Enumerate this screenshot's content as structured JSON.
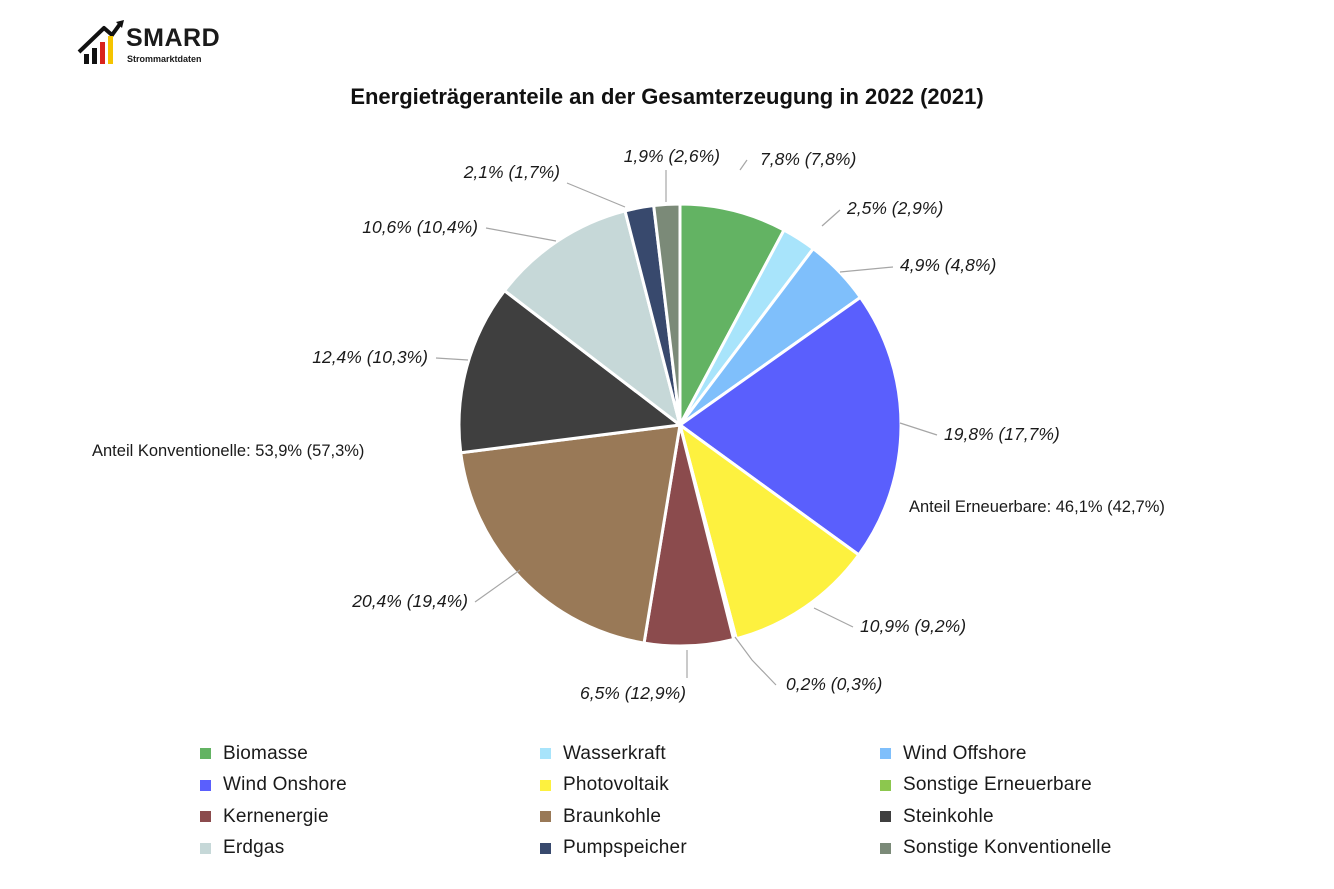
{
  "logo": {
    "name": "SMARD",
    "subtitle": "Strommarktdaten"
  },
  "chart_data": {
    "type": "pie",
    "title": "Energieträgeranteile an der Gesamterzeugung in 2022 (2021)",
    "slices": [
      {
        "name": "Biomasse",
        "value": 7.8,
        "label": "7,8% (7,8%)",
        "color": "#63b363"
      },
      {
        "name": "Wasserkraft",
        "value": 2.5,
        "label": "2,5% (2,9%)",
        "color": "#a8e4fb"
      },
      {
        "name": "Wind Offshore",
        "value": 4.9,
        "label": "4,9% (4,8%)",
        "color": "#7fbffb"
      },
      {
        "name": "Wind Onshore",
        "value": 19.8,
        "label": "19,8% (17,7%)",
        "color": "#5a5ffd"
      },
      {
        "name": "Photovoltaik",
        "value": 10.9,
        "label": "10,9% (9,2%)",
        "color": "#fdf13f"
      },
      {
        "name": "Sonstige Erneuerbare",
        "value": 0.2,
        "label": "0,2% (0,3%)",
        "color": "#8cc74e"
      },
      {
        "name": "Kernenergie",
        "value": 6.5,
        "label": "6,5% (12,9%)",
        "color": "#8b4b4d"
      },
      {
        "name": "Braunkohle",
        "value": 20.4,
        "label": "20,4% (19,4%)",
        "color": "#997957"
      },
      {
        "name": "Steinkohle",
        "value": 12.4,
        "label": "12,4% (10,3%)",
        "color": "#3f3f3f"
      },
      {
        "name": "Erdgas",
        "value": 10.6,
        "label": "10,6% (10,4%)",
        "color": "#c6d8d8"
      },
      {
        "name": "Pumpspeicher",
        "value": 2.1,
        "label": "2,1% (1,7%)",
        "color": "#38496d"
      },
      {
        "name": "Sonstige Konventionelle",
        "value": 1.9,
        "label": "1,9% (2,6%)",
        "color": "#7b8a78"
      }
    ],
    "group_labels": {
      "renewable": "Anteil Erneuerbare: 46,1% (42,7%)",
      "conventional": "Anteil Konventionelle: 53,9% (57,3%)"
    },
    "legend": {
      "position": "bottom",
      "columns": 3
    }
  }
}
